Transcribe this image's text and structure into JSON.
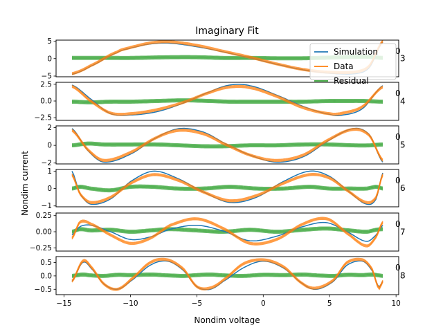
{
  "figure": {
    "title": "Imaginary Fit",
    "xlabel": "Nondim voltage",
    "ylabel": "Nondim current"
  },
  "chart_data": {
    "type": "line",
    "title": "Imaginary Fit",
    "xlabel": "Nondim voltage",
    "ylabel": "Nondim current",
    "xlim": [
      -15.6,
      10.2
    ],
    "xticks": [
      -15,
      -10,
      -5,
      0,
      5,
      10
    ],
    "xticklabels": [
      "−15",
      "−10",
      "−5",
      "0",
      "5",
      "10"
    ],
    "voltage_range": [
      -14.4,
      9.0
    ],
    "legend": {
      "placement": "top-right",
      "entries": [
        "Simulation",
        "Data",
        "Residual"
      ]
    },
    "colors": {
      "Simulation": "#1f77b4",
      "Data": "#ff7f0e",
      "Residual": "#2ca02c"
    },
    "panels": [
      {
        "harmonic_label": "3",
        "right_tick_label": "0",
        "ylim": [
          -5.2,
          5.3
        ],
        "yticks": [
          -5,
          0,
          5
        ],
        "yticklabels": [
          "−5",
          "0",
          "5"
        ],
        "x": [
          -14.4,
          -13,
          -11,
          -10,
          -8.5,
          -7,
          -5,
          -3,
          -1,
          1,
          3,
          5,
          7,
          8,
          9
        ],
        "series": [
          {
            "name": "Simulation",
            "values": [
              -4.5,
              -2.2,
              1.7,
              3.0,
              4.2,
              4.4,
              3.4,
              1.9,
              0.2,
              -1.6,
              -3.2,
              -4.2,
              -4.3,
              -2.5,
              4.8
            ]
          },
          {
            "name": "Data",
            "values": [
              -4.3,
              -2.0,
              1.9,
              3.2,
              4.5,
              4.8,
              3.8,
              2.1,
              0.4,
              -1.5,
              -3.1,
              -3.9,
              -3.8,
              -2.0,
              5.0
            ]
          },
          {
            "name": "Residual",
            "values": [
              0.2,
              0.2,
              0.2,
              0.2,
              0.3,
              0.4,
              0.4,
              0.2,
              0.2,
              0.1,
              0.1,
              0.3,
              0.5,
              0.5,
              0.2
            ]
          }
        ]
      },
      {
        "harmonic_label": "4",
        "right_tick_label": "0",
        "ylim": [
          -2.9,
          2.8
        ],
        "yticks": [
          -2.5,
          0.0,
          2.5
        ],
        "yticklabels": [
          "−2.5",
          "0.0",
          "2.5"
        ],
        "x": [
          -14.4,
          -13,
          -11.5,
          -10,
          -8,
          -6,
          -4,
          -2.5,
          -1,
          1,
          3,
          5,
          6,
          7.5,
          9
        ],
        "series": [
          {
            "name": "Simulation",
            "values": [
              2.4,
              0.3,
              -1.9,
              -2.1,
              -1.6,
              -0.3,
              1.4,
              2.4,
              2.3,
              0.9,
              -0.8,
              -2.0,
              -2.1,
              -1.1,
              2.3
            ]
          },
          {
            "name": "Data",
            "values": [
              2.2,
              0.0,
              -1.8,
              -1.9,
              -1.3,
              -0.2,
              1.3,
              2.1,
              2.0,
              0.7,
              -1.0,
              -1.9,
              -1.8,
              -0.8,
              2.1
            ]
          },
          {
            "name": "Residual",
            "values": [
              -0.1,
              -0.2,
              -0.1,
              -0.1,
              0.0,
              0.1,
              0.0,
              -0.1,
              -0.1,
              -0.1,
              -0.1,
              0.0,
              0.0,
              0.0,
              -0.1
            ]
          }
        ]
      },
      {
        "harmonic_label": "5",
        "right_tick_label": "0",
        "ylim": [
          -2.1,
          2.2
        ],
        "yticks": [
          -2,
          0,
          2
        ],
        "yticklabels": [
          "−2",
          "0",
          "2"
        ],
        "x": [
          -14.4,
          -13.2,
          -12,
          -10,
          -8,
          -6.3,
          -4.5,
          -3,
          -1,
          1,
          3,
          5,
          6.8,
          8,
          9
        ],
        "series": [
          {
            "name": "Simulation",
            "values": [
              1.9,
              -0.6,
              -1.9,
              -1.0,
              0.9,
              1.9,
              1.5,
              0.3,
              -1.1,
              -1.9,
              -1.3,
              0.6,
              1.9,
              1.2,
              -1.9
            ]
          },
          {
            "name": "Data",
            "values": [
              1.7,
              -0.5,
              -1.7,
              -0.8,
              0.9,
              1.7,
              1.3,
              0.2,
              -1.1,
              -1.7,
              -1.1,
              0.7,
              1.8,
              1.1,
              -1.7
            ]
          },
          {
            "name": "Residual",
            "values": [
              0.0,
              0.2,
              0.1,
              0.1,
              0.1,
              0.0,
              -0.1,
              -0.1,
              0.0,
              0.0,
              0.1,
              0.1,
              0.0,
              0.0,
              0.1
            ]
          }
        ]
      },
      {
        "harmonic_label": "6",
        "right_tick_label": "0",
        "ylim": [
          -1.05,
          1.1
        ],
        "yticks": [
          -1,
          0,
          1
        ],
        "yticklabels": [
          "−1",
          "0",
          "1"
        ],
        "x": [
          -14.4,
          -13.8,
          -13,
          -11.5,
          -10,
          -8.3,
          -6.5,
          -4.5,
          -2.5,
          -0.5,
          1.5,
          3.5,
          5,
          6.5,
          7.8,
          8.5,
          9
        ],
        "series": [
          {
            "name": "Simulation",
            "values": [
              1.0,
              -0.3,
              -0.9,
              -0.6,
              0.4,
              1.0,
              0.6,
              -0.2,
              -0.8,
              -0.5,
              0.4,
              1.0,
              0.7,
              -0.2,
              -0.9,
              -0.6,
              0.9
            ]
          },
          {
            "name": "Data",
            "values": [
              0.8,
              -0.3,
              -0.8,
              -0.5,
              0.3,
              0.8,
              0.5,
              -0.2,
              -0.7,
              -0.4,
              0.3,
              0.8,
              0.6,
              -0.2,
              -0.8,
              -0.5,
              0.8
            ]
          },
          {
            "name": "Residual",
            "values": [
              0.0,
              0.1,
              0.0,
              -0.1,
              0.1,
              0.1,
              0.0,
              0.0,
              0.1,
              0.0,
              0.0,
              0.1,
              0.0,
              0.0,
              0.0,
              0.1,
              0.0
            ]
          }
        ]
      },
      {
        "harmonic_label": "7",
        "right_tick_label": "0",
        "ylim": [
          -0.3,
          0.29
        ],
        "yticks": [
          -0.25,
          0.0,
          0.25
        ],
        "yticklabels": [
          "−0.25",
          "0.00",
          "0.25"
        ],
        "x": [
          -14.4,
          -13.8,
          -13,
          -11.5,
          -10,
          -8.5,
          -7,
          -5,
          -3,
          -1,
          1,
          3,
          4.8,
          6.5,
          7.8,
          8.5,
          9
        ],
        "series": [
          {
            "name": "Simulation",
            "values": [
              -0.05,
              0.08,
              0.1,
              0.0,
              -0.12,
              -0.08,
              0.04,
              0.1,
              0.01,
              -0.14,
              -0.07,
              0.08,
              0.14,
              -0.02,
              -0.15,
              -0.05,
              0.1
            ]
          },
          {
            "name": "Data",
            "values": [
              -0.1,
              0.15,
              0.12,
              -0.05,
              -0.18,
              -0.1,
              0.1,
              0.2,
              0.05,
              -0.18,
              -0.12,
              0.12,
              0.2,
              -0.05,
              -0.22,
              -0.08,
              0.15
            ]
          },
          {
            "name": "Residual",
            "values": [
              0.0,
              0.04,
              0.02,
              0.03,
              0.0,
              0.02,
              0.04,
              0.02,
              0.0,
              0.03,
              0.0,
              0.03,
              0.05,
              0.02,
              0.0,
              0.03,
              0.04
            ]
          }
        ]
      },
      {
        "harmonic_label": "8",
        "right_tick_label": "0",
        "ylim": [
          -0.7,
          0.72
        ],
        "yticks": [
          -0.5,
          0.0,
          0.5
        ],
        "yticklabels": [
          "−0.5",
          "0.0",
          "0.5"
        ],
        "x": [
          -14.4,
          -13.6,
          -13,
          -12,
          -11,
          -10,
          -8.5,
          -7.2,
          -6,
          -5,
          -4,
          -3,
          -1.5,
          0,
          1.5,
          3,
          4,
          5.3,
          6.3,
          7.5,
          8.2,
          8.7,
          9
        ],
        "series": [
          {
            "name": "Simulation",
            "values": [
              -0.2,
              0.5,
              0.3,
              -0.3,
              -0.5,
              -0.2,
              0.4,
              0.55,
              0.2,
              -0.4,
              -0.5,
              -0.2,
              0.3,
              0.55,
              0.3,
              -0.3,
              -0.5,
              -0.2,
              0.4,
              0.55,
              0.2,
              -0.4,
              -0.2
            ]
          },
          {
            "name": "Data",
            "values": [
              -0.2,
              0.55,
              0.35,
              -0.3,
              -0.5,
              -0.15,
              0.5,
              0.6,
              0.25,
              -0.4,
              -0.45,
              -0.15,
              0.45,
              0.6,
              0.35,
              -0.3,
              -0.45,
              -0.15,
              0.5,
              0.6,
              0.25,
              -0.45,
              -0.2
            ]
          },
          {
            "name": "Residual",
            "values": [
              0.0,
              0.05,
              0.02,
              0.0,
              0.04,
              0.03,
              0.05,
              0.02,
              0.0,
              0.03,
              0.05,
              0.02,
              0.0,
              0.04,
              0.03,
              0.05,
              0.02,
              0.0,
              0.04,
              0.03,
              0.05,
              0.02,
              0.0
            ]
          }
        ]
      }
    ]
  }
}
